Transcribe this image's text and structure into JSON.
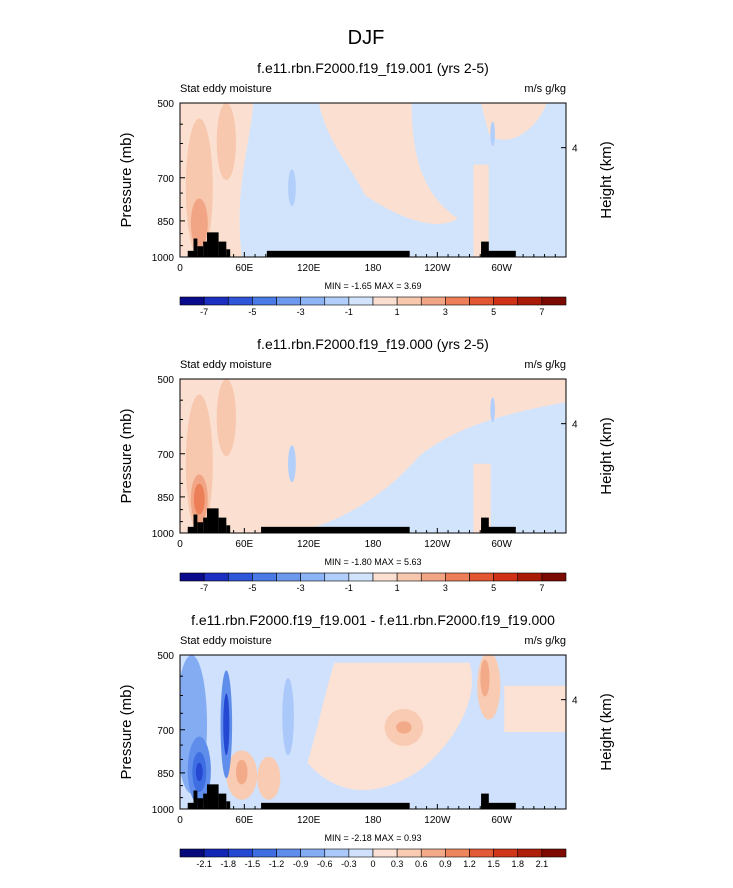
{
  "figure": {
    "title": "DJF"
  },
  "tick_style": {
    "pressure_levels": [
      500,
      700,
      850,
      1000
    ],
    "height_tick_km": 4
  },
  "chart_data": [
    {
      "type": "heatmap",
      "title": "f.e11.rbn.F2000.f19_f19.001 (yrs 2-5)",
      "left_label": "Stat eddy moisture",
      "right_label": "m/s g/kg",
      "ylabel": "Pressure (mb)",
      "ylabel_right": "Height (km)",
      "x_ticks": [
        "0",
        "60E",
        "120E",
        "180",
        "120W",
        "60W"
      ],
      "y_ticks": [
        "500",
        "700",
        "850",
        "1000"
      ],
      "y_right_ticks": [
        "4"
      ],
      "stats": "MIN = -1.65  MAX =  3.69",
      "colorbar_ticks": [
        "-7",
        "-5",
        "-3",
        "-1",
        "1",
        "3",
        "5",
        "7"
      ],
      "min": -1.65,
      "max": 3.69,
      "variant": "control"
    },
    {
      "type": "heatmap",
      "title": "f.e11.rbn.F2000.f19_f19.000 (yrs 2-5)",
      "left_label": "Stat eddy moisture",
      "right_label": "m/s g/kg",
      "ylabel": "Pressure (mb)",
      "ylabel_right": "Height (km)",
      "x_ticks": [
        "0",
        "60E",
        "120E",
        "180",
        "120W",
        "60W"
      ],
      "y_ticks": [
        "500",
        "700",
        "850",
        "1000"
      ],
      "y_right_ticks": [
        "4"
      ],
      "stats": "MIN = -1.80  MAX =  5.63",
      "colorbar_ticks": [
        "-7",
        "-5",
        "-3",
        "-1",
        "1",
        "3",
        "5",
        "7"
      ],
      "min": -1.8,
      "max": 5.63,
      "variant": "test"
    },
    {
      "type": "heatmap",
      "title": "f.e11.rbn.F2000.f19_f19.001 - f.e11.rbn.F2000.f19_f19.000",
      "left_label": "Stat eddy moisture",
      "right_label": "m/s g/kg",
      "ylabel": "Pressure (mb)",
      "ylabel_right": "Height (km)",
      "x_ticks": [
        "0",
        "60E",
        "120E",
        "180",
        "120W",
        "60W"
      ],
      "y_ticks": [
        "500",
        "700",
        "850",
        "1000"
      ],
      "y_right_ticks": [
        "4"
      ],
      "stats": "MIN = -2.18  MAX =  0.93",
      "colorbar_ticks": [
        "-2.1",
        "-1.8",
        "-1.5",
        "-1.2",
        "-0.9",
        "-0.6",
        "-0.3",
        "0",
        "0.3",
        "0.6",
        "0.9",
        "1.2",
        "1.5",
        "1.8",
        "2.1"
      ],
      "min": -2.18,
      "max": 0.93,
      "variant": "diff"
    }
  ],
  "colors": {
    "colorbar_16": [
      "#0a0a8c",
      "#1c2fc0",
      "#2f55d8",
      "#4a7ae6",
      "#6c98ee",
      "#8db5f5",
      "#b2cefa",
      "#d2e4fc",
      "#fbe0d2",
      "#f7c7ae",
      "#f2a584",
      "#ec7f58",
      "#e25632",
      "#cf3216",
      "#aa1b07",
      "#7a0a02"
    ],
    "colorbar_16_diff": [
      "#07087a",
      "#1326b5",
      "#2548d3",
      "#3f6ee2",
      "#5f8deb",
      "#84acf3",
      "#aac8f9",
      "#cfe1fc",
      "#fce2d5",
      "#f8cbb2",
      "#f3aa89",
      "#ed855d",
      "#e35b36",
      "#d0361a",
      "#ae1e09",
      "#7d0b02"
    ],
    "topography": "#000000"
  }
}
